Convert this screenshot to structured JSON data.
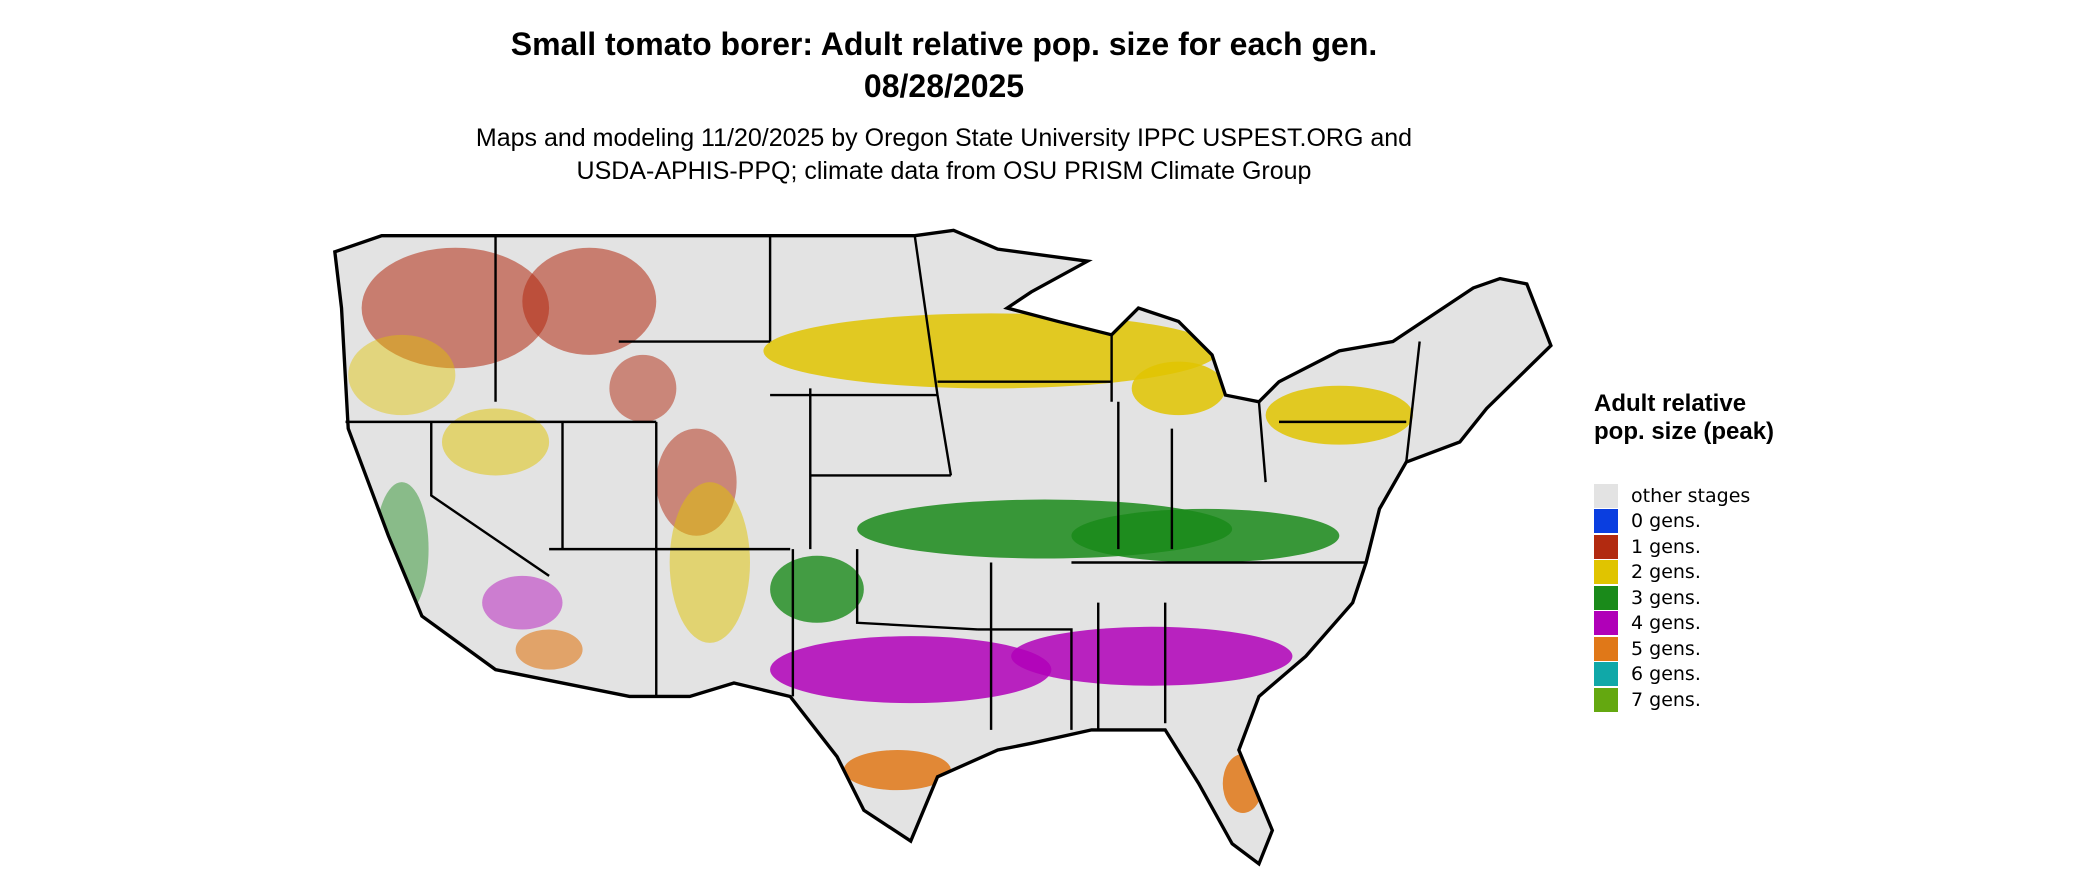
{
  "header": {
    "title": "Small tomato borer: Adult relative pop. size for each gen.",
    "date": "08/28/2025",
    "subtitle_lines": [
      "Maps and modeling 11/20/2025 by Oregon State University IPPC USPEST.ORG and",
      "USDA-APHIS-PPQ; climate data from OSU PRISM Climate Group"
    ]
  },
  "legend": {
    "title": "Adult relative pop. size (peak)",
    "items": [
      {
        "label": "other stages",
        "color": "#e3e3e3"
      },
      {
        "label": "0 gens.",
        "color": "#0a3ee0"
      },
      {
        "label": "1 gens.",
        "color": "#b22a10"
      },
      {
        "label": "2 gens.",
        "color": "#e0c400"
      },
      {
        "label": "3 gens.",
        "color": "#1a8a1a"
      },
      {
        "label": "4 gens.",
        "color": "#b000b8"
      },
      {
        "label": "5 gens.",
        "color": "#e07818"
      },
      {
        "label": "6 gens.",
        "color": "#10a8a8"
      },
      {
        "label": "7 gens.",
        "color": "#64a810"
      }
    ]
  }
}
